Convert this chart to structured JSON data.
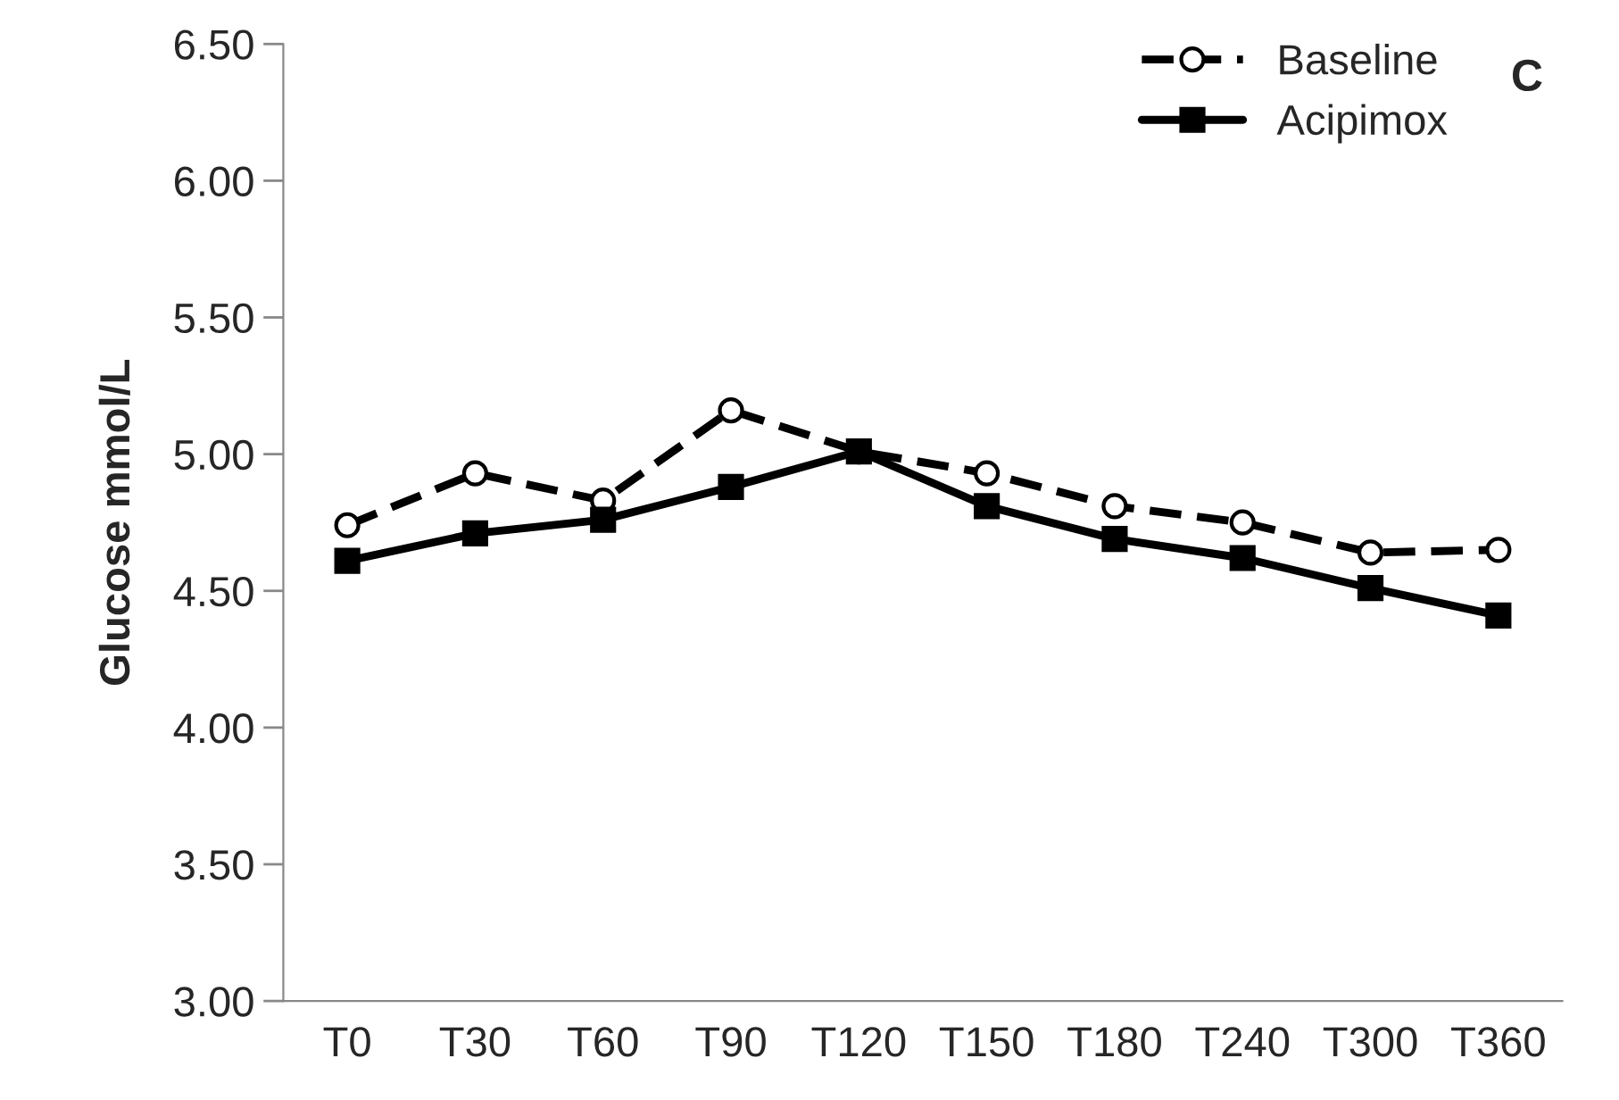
{
  "chart_data": {
    "type": "line",
    "ylabel": "Glucose mmol/L",
    "annotations": [
      "C"
    ],
    "categories": [
      "T0",
      "T30",
      "T60",
      "T90",
      "T120",
      "T150",
      "T180",
      "T240",
      "T300",
      "T360"
    ],
    "series": [
      {
        "name": "Baseline",
        "color": "#000000",
        "marker": "circle",
        "line_style": "dashed",
        "values": [
          4.74,
          4.93,
          4.83,
          5.16,
          5.01,
          4.93,
          4.81,
          4.75,
          4.64,
          4.65
        ]
      },
      {
        "name": "Acipimox",
        "color": "#000000",
        "marker": "square",
        "line_style": "solid",
        "values": [
          4.61,
          4.71,
          4.76,
          4.88,
          5.01,
          4.81,
          4.69,
          4.62,
          4.51,
          4.41
        ]
      }
    ],
    "ylim": [
      3.0,
      6.5
    ],
    "yticks": [
      {
        "value": 3.0,
        "label": "3.00"
      },
      {
        "value": 3.5,
        "label": "3.50"
      },
      {
        "value": 4.0,
        "label": "4.00"
      },
      {
        "value": 4.5,
        "label": "4.50"
      },
      {
        "value": 5.0,
        "label": "5.00"
      },
      {
        "value": 5.5,
        "label": "5.50"
      },
      {
        "value": 6.0,
        "label": "6.00"
      },
      {
        "value": 6.5,
        "label": "6.50"
      }
    ],
    "grid": false,
    "legend": "top right"
  }
}
